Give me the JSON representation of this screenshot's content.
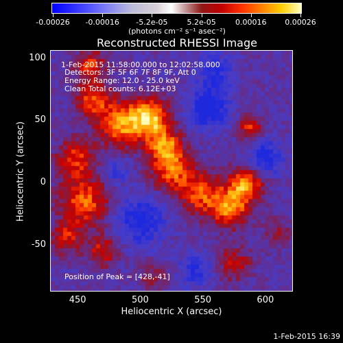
{
  "chart_data": {
    "type": "heatmap",
    "title": "Reconstructed RHESSI Image",
    "xlabel": "Heliocentric X (arcsec)",
    "ylabel": "Heliocentric Y (arcsec)",
    "xlim": [
      428,
      622
    ],
    "ylim": [
      -87,
      107
    ],
    "x_ticks": [
      450,
      500,
      550,
      600
    ],
    "y_ticks": [
      100,
      50,
      0,
      -50
    ],
    "colorbar": {
      "ticks": [
        "-0.00026",
        "-0.00016",
        "-5.2e-05",
        "5.2e-05",
        "0.00016",
        "0.00026"
      ],
      "units": "(photons cm⁻² s⁻¹ asec⁻²)",
      "range": [
        -0.00026,
        0.00026
      ]
    },
    "annotations": {
      "time_range": "1-Feb-2015 11:58:00.000 to 12:02:58.000",
      "detectors": "Detectors: 3F 5F 6F 7F 8F 9F, Att 0",
      "energy": "Energy Range: 12.0 - 25.0 keV",
      "clean": "Clean     Total counts: 6.12E+03",
      "peak": "Position of Peak = [428,-41]"
    },
    "bright_regions": [
      {
        "x": 462,
        "y": 67,
        "sigma": 10,
        "amp": 1.0
      },
      {
        "x": 485,
        "y": 47,
        "sigma": 13,
        "amp": 1.2
      },
      {
        "x": 508,
        "y": 53,
        "sigma": 11,
        "amp": 1.35
      },
      {
        "x": 520,
        "y": 30,
        "sigma": 10,
        "amp": 1.1
      },
      {
        "x": 525,
        "y": 10,
        "sigma": 12,
        "amp": 1.0
      },
      {
        "x": 548,
        "y": -8,
        "sigma": 12,
        "amp": 1.0
      },
      {
        "x": 572,
        "y": -20,
        "sigma": 11,
        "amp": 1.2
      },
      {
        "x": 585,
        "y": 0,
        "sigma": 10,
        "amp": 1.25
      },
      {
        "x": 588,
        "y": 45,
        "sigma": 7,
        "amp": 0.9
      },
      {
        "x": 455,
        "y": -15,
        "sigma": 14,
        "amp": 1.1
      },
      {
        "x": 448,
        "y": 20,
        "sigma": 11,
        "amp": 0.9
      },
      {
        "x": 440,
        "y": -45,
        "sigma": 9,
        "amp": 0.8
      },
      {
        "x": 470,
        "y": -55,
        "sigma": 9,
        "amp": 0.8
      },
      {
        "x": 460,
        "y": 95,
        "sigma": 9,
        "amp": 0.9
      },
      {
        "x": 575,
        "y": -65,
        "sigma": 10,
        "amp": 0.7
      },
      {
        "x": 610,
        "y": -40,
        "sigma": 8,
        "amp": 0.5
      },
      {
        "x": 510,
        "y": -75,
        "sigma": 8,
        "amp": 0.5
      }
    ],
    "dark_regions": [
      {
        "x": 555,
        "y": 60,
        "sigma": 12,
        "amp": -0.9
      },
      {
        "x": 500,
        "y": -30,
        "sigma": 14,
        "amp": -0.8
      },
      {
        "x": 600,
        "y": 20,
        "sigma": 10,
        "amp": -0.8
      },
      {
        "x": 560,
        "y": 90,
        "sigma": 10,
        "amp": -0.6
      },
      {
        "x": 545,
        "y": -70,
        "sigma": 10,
        "amp": -0.6
      },
      {
        "x": 480,
        "y": 10,
        "sigma": 8,
        "amp": -0.5
      }
    ]
  },
  "footer": {
    "timestamp": "1-Feb-2015 16:39"
  }
}
